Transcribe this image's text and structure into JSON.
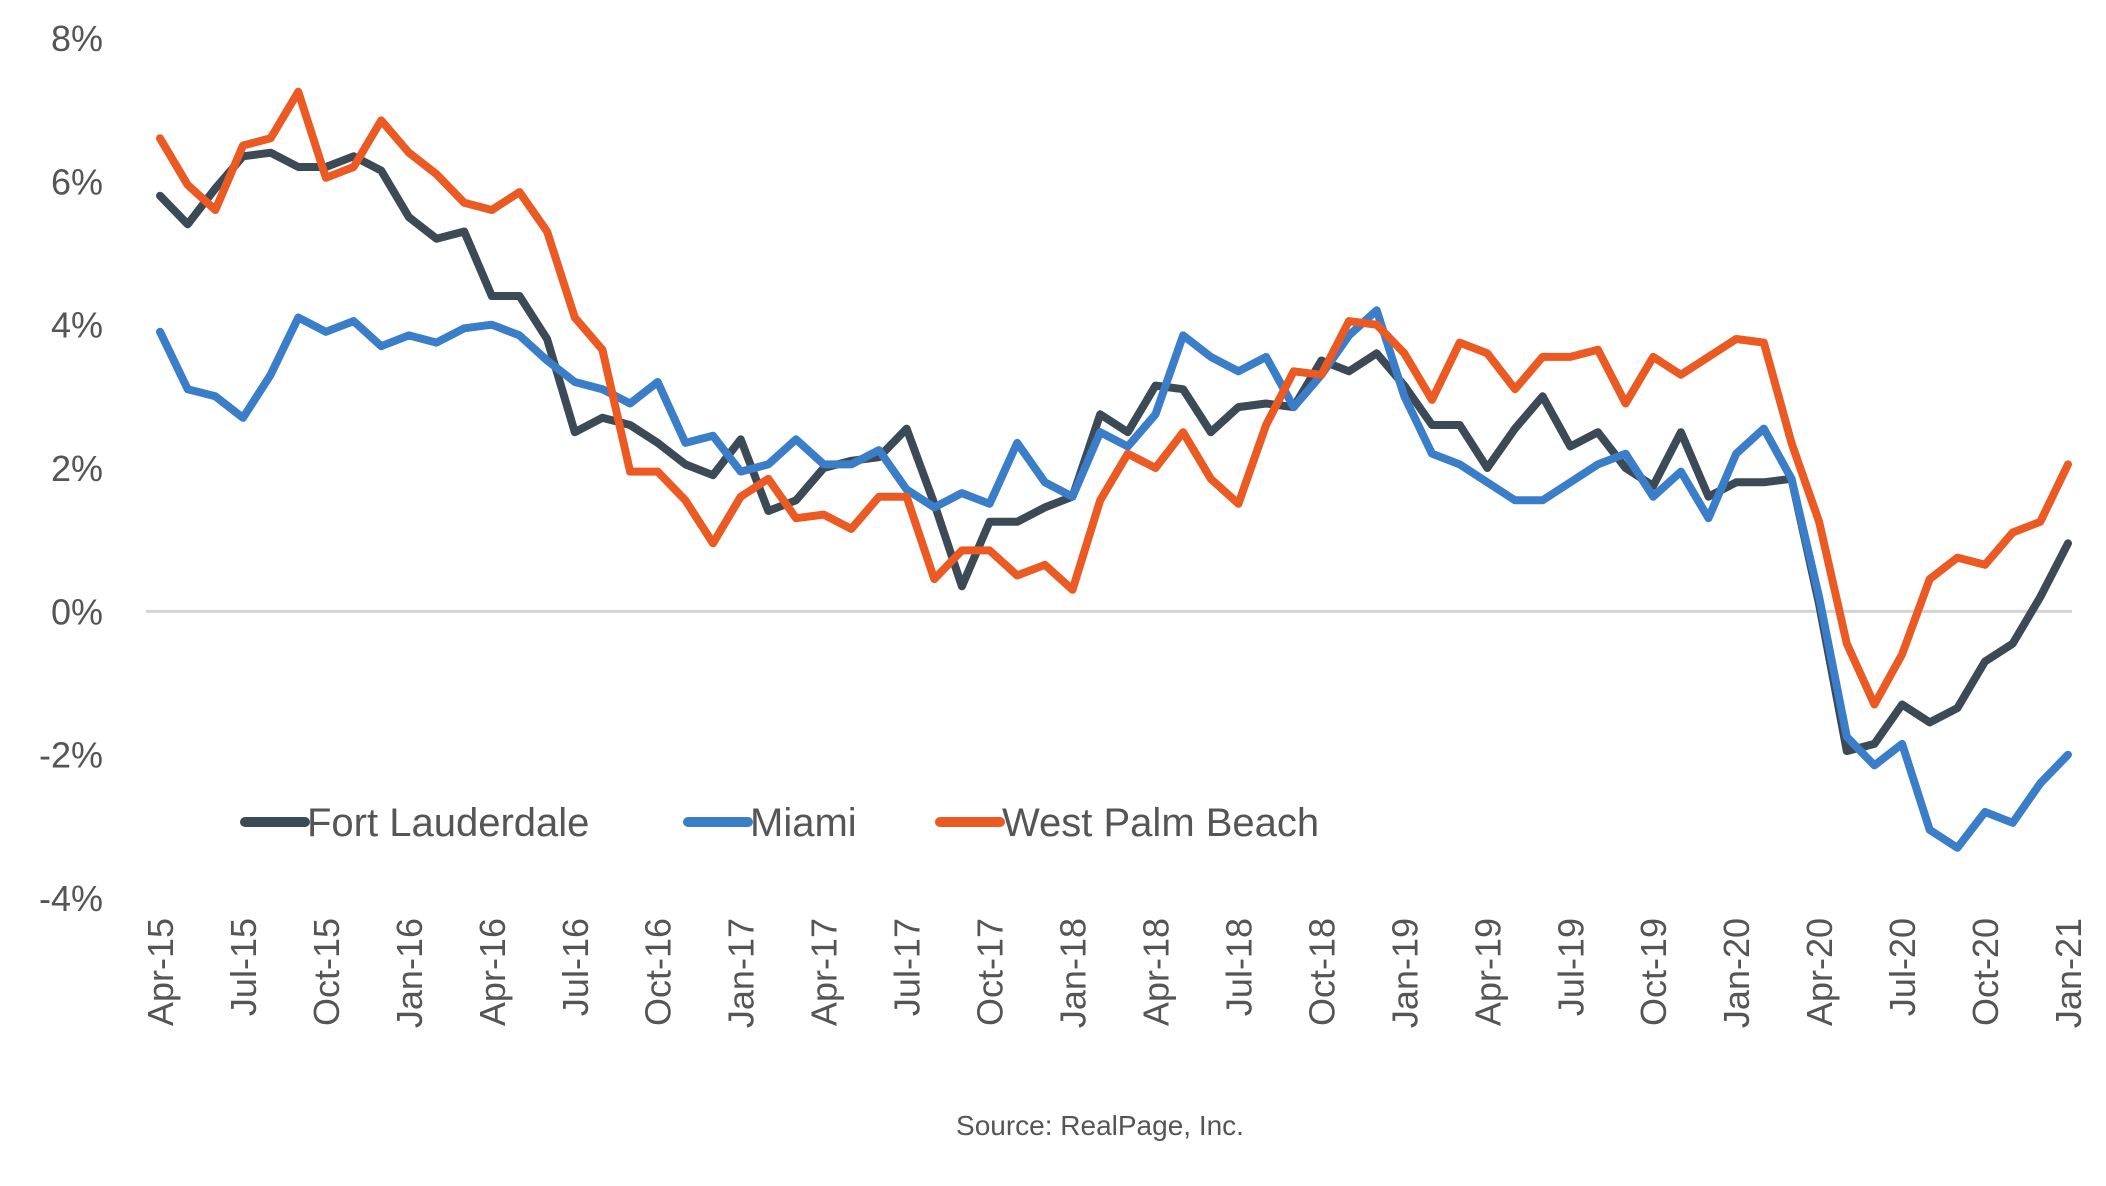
{
  "chart_data": {
    "type": "line",
    "title": "",
    "xlabel": "",
    "ylabel": "",
    "ylim": [
      -4,
      8
    ],
    "yticks": [
      "8%",
      "6%",
      "4%",
      "2%",
      "0%",
      "-2%",
      "-4%"
    ],
    "ytick_values": [
      8,
      6,
      4,
      2,
      0,
      -2,
      -4
    ],
    "x": [
      "Apr-15",
      "May-15",
      "Jun-15",
      "Jul-15",
      "Aug-15",
      "Sep-15",
      "Oct-15",
      "Nov-15",
      "Dec-15",
      "Jan-16",
      "Feb-16",
      "Mar-16",
      "Apr-16",
      "May-16",
      "Jun-16",
      "Jul-16",
      "Aug-16",
      "Sep-16",
      "Oct-16",
      "Nov-16",
      "Dec-16",
      "Jan-17",
      "Feb-17",
      "Mar-17",
      "Apr-17",
      "May-17",
      "Jun-17",
      "Jul-17",
      "Aug-17",
      "Sep-17",
      "Oct-17",
      "Nov-17",
      "Dec-17",
      "Jan-18",
      "Feb-18",
      "Mar-18",
      "Apr-18",
      "May-18",
      "Jun-18",
      "Jul-18",
      "Aug-18",
      "Sep-18",
      "Oct-18",
      "Nov-18",
      "Dec-18",
      "Jan-19",
      "Feb-19",
      "Mar-19",
      "Apr-19",
      "May-19",
      "Jun-19",
      "Jul-19",
      "Aug-19",
      "Sep-19",
      "Oct-19",
      "Nov-19",
      "Dec-19",
      "Jan-20",
      "Feb-20",
      "Mar-20",
      "Apr-20",
      "May-20",
      "Jun-20",
      "Jul-20",
      "Aug-20",
      "Sep-20",
      "Oct-20",
      "Nov-20",
      "Dec-20",
      "Jan-21"
    ],
    "xtick_labels": [
      "Apr-15",
      "Jul-15",
      "Oct-15",
      "Jan-16",
      "Apr-16",
      "Jul-16",
      "Oct-16",
      "Jan-17",
      "Apr-17",
      "Jul-17",
      "Oct-17",
      "Jan-18",
      "Apr-18",
      "Jul-18",
      "Oct-18",
      "Jan-19",
      "Apr-19",
      "Jul-19",
      "Oct-19",
      "Jan-20",
      "Apr-20",
      "Jul-20",
      "Oct-20",
      "Jan-21"
    ],
    "series": [
      {
        "name": "Fort Lauderdale",
        "color": "#3c4a56",
        "values": [
          5.8,
          5.4,
          5.9,
          6.35,
          6.4,
          6.2,
          6.2,
          6.35,
          6.15,
          5.5,
          5.2,
          5.3,
          4.4,
          4.4,
          3.8,
          2.5,
          2.7,
          2.6,
          2.35,
          2.05,
          1.9,
          2.4,
          1.4,
          1.55,
          2.0,
          2.1,
          2.15,
          2.55,
          1.5,
          0.35,
          1.25,
          1.25,
          1.45,
          1.6,
          2.75,
          2.5,
          3.15,
          3.1,
          2.5,
          2.85,
          2.9,
          2.85,
          3.5,
          3.35,
          3.6,
          3.15,
          2.6,
          2.6,
          2.0,
          2.55,
          3.0,
          2.3,
          2.5,
          2.0,
          1.75,
          2.5,
          1.6,
          1.8,
          1.8,
          1.85,
          0.1,
          -1.95,
          -1.85,
          -1.3,
          -1.55,
          -1.35,
          -0.7,
          -0.45,
          0.2,
          0.95
        ]
      },
      {
        "name": "Miami",
        "color": "#3a7dc9",
        "values": [
          3.9,
          3.1,
          3.0,
          2.7,
          3.3,
          4.1,
          3.9,
          4.05,
          3.7,
          3.85,
          3.75,
          3.95,
          4.0,
          3.85,
          3.5,
          3.2,
          3.1,
          2.9,
          3.2,
          2.35,
          2.45,
          1.95,
          2.05,
          2.4,
          2.05,
          2.05,
          2.25,
          1.7,
          1.45,
          1.65,
          1.5,
          2.35,
          1.8,
          1.6,
          2.5,
          2.3,
          2.75,
          3.85,
          3.55,
          3.35,
          3.55,
          2.85,
          3.3,
          3.85,
          4.2,
          3.0,
          2.2,
          2.05,
          1.8,
          1.55,
          1.55,
          1.8,
          2.05,
          2.2,
          1.6,
          1.95,
          1.3,
          2.2,
          2.55,
          1.85,
          0.2,
          -1.75,
          -2.15,
          -1.85,
          -3.05,
          -3.3,
          -2.8,
          -2.95,
          -2.4,
          -2.0
        ]
      },
      {
        "name": "West Palm Beach",
        "color": "#eb5a22",
        "values": [
          6.6,
          5.95,
          5.6,
          6.5,
          6.6,
          7.25,
          6.05,
          6.2,
          6.85,
          6.4,
          6.1,
          5.7,
          5.6,
          5.85,
          5.3,
          4.1,
          3.65,
          1.95,
          1.95,
          1.55,
          0.95,
          1.6,
          1.85,
          1.3,
          1.35,
          1.15,
          1.6,
          1.6,
          0.45,
          0.85,
          0.85,
          0.5,
          0.65,
          0.3,
          1.55,
          2.2,
          2.0,
          2.5,
          1.85,
          1.5,
          2.6,
          3.35,
          3.3,
          4.05,
          4.0,
          3.6,
          2.95,
          3.75,
          3.6,
          3.1,
          3.55,
          3.55,
          3.65,
          2.9,
          3.55,
          3.3,
          3.55,
          3.8,
          3.75,
          2.35,
          1.25,
          -0.45,
          -1.3,
          -0.6,
          0.45,
          0.75,
          0.65,
          1.1,
          1.25,
          2.05
        ]
      }
    ],
    "legend_position": "bottom-left, inside plot",
    "grid": false,
    "zero_line": true,
    "source": "Source: RealPage, Inc."
  }
}
